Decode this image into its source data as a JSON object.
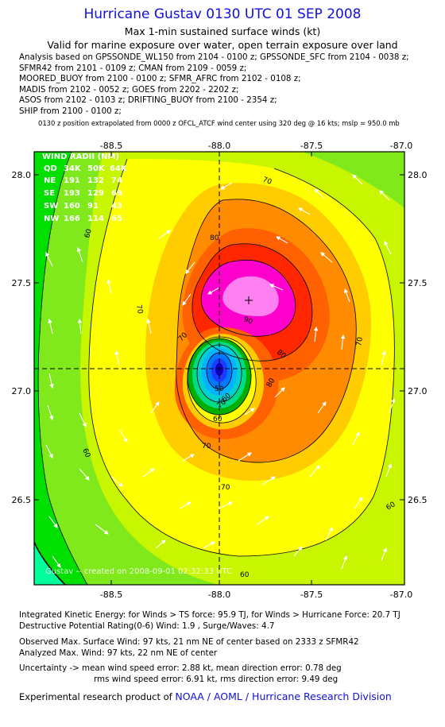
{
  "header": {
    "title": "Hurricane Gustav 0130 UTC 01 SEP 2008",
    "subtitle1": "Max 1-min sustained surface winds (kt)",
    "subtitle2": "Valid for marine exposure over water, open terrain exposure over land"
  },
  "analysis_lines": [
    "Analysis based on  GPSSONDE_WL150 from 2104 - 0100 z;  GPSSONDE_SFC from 2104 - 0038 z;",
    "SFMR42 from 2101 - 0109 z;  CMAN from 2109 - 0059 z;",
    "MOORED_BUOY from 2100 - 0100 z;  SFMR_AFRC from 2102 - 0108 z;",
    "MADIS from 2102 - 0052 z;  GOES from 2202 - 2202 z;",
    "ASOS from 2102 - 0103 z;  DRIFTING_BUOY from 2100 - 2354 z;",
    "SHIP from 2100 - 0100 z;"
  ],
  "position_note": "0130 z position extrapolated from 0000 z OFCL_ATCF wind center using 320 deg @ 16 kts; mslp = 950.0 mb",
  "map": {
    "lon_ticks": [
      "-88.5",
      "-88.0",
      "-87.5",
      "-87.0"
    ],
    "lat_ticks": [
      "28.0",
      "27.5",
      "27.0",
      "26.5"
    ],
    "watermark": "Gustav -- created on 2008-09-01 02:32:33 UTC",
    "contour_labels": [
      "60",
      "60",
      "60",
      "60",
      "70",
      "70",
      "70",
      "70",
      "70",
      "70",
      "80",
      "80",
      "80",
      "90",
      "60",
      "70",
      "50",
      "60"
    ],
    "band_colors": {
      "c40": "#00ff9a",
      "c50": "#00e000",
      "c60": "#7fe91c",
      "c65": "#c8f500",
      "c70": "#ffff00",
      "c75": "#ffcc00",
      "c80": "#ff8c00",
      "c85": "#ff6000",
      "c90": "#ff2600",
      "c95": "#ff00cc",
      "c97": "#ff80f0"
    },
    "wind_radii": {
      "title": "WIND RADII (NM)",
      "header": [
        "QD",
        "34K",
        "50K",
        "64K"
      ],
      "rows": [
        [
          "NE",
          "191",
          "132",
          "74"
        ],
        [
          "SE",
          "193",
          "129",
          "69"
        ],
        [
          "SW",
          "160",
          "91",
          "43"
        ],
        [
          "NW",
          "166",
          "114",
          "65"
        ]
      ]
    }
  },
  "footer": {
    "ike": "Integrated Kinetic Energy:  for Winds > TS force: 95.9 TJ,  for Winds > Hurricane Force: 20.7 TJ",
    "dpr": "Destructive Potential Rating(0-6)   Wind: 1.9 , Surge/Waves: 4.7",
    "observed": "Observed Max. Surface Wind: 97 kts, 21 nm NE of center based on 2333 z SFMR42",
    "analyzed": "Analyzed Max. Wind: 97 kts, 22 nm NE of center",
    "unc1": "Uncertainty -> mean wind speed error: 2.88 kt,   mean direction error: 0.78 deg",
    "unc2": "rms wind speed error: 6.91 kt,   rms direction error: 9.49 deg",
    "credit_prefix": "Experimental research product of ",
    "credit_link": "NOAA / AOML / Hurricane Research Division"
  }
}
